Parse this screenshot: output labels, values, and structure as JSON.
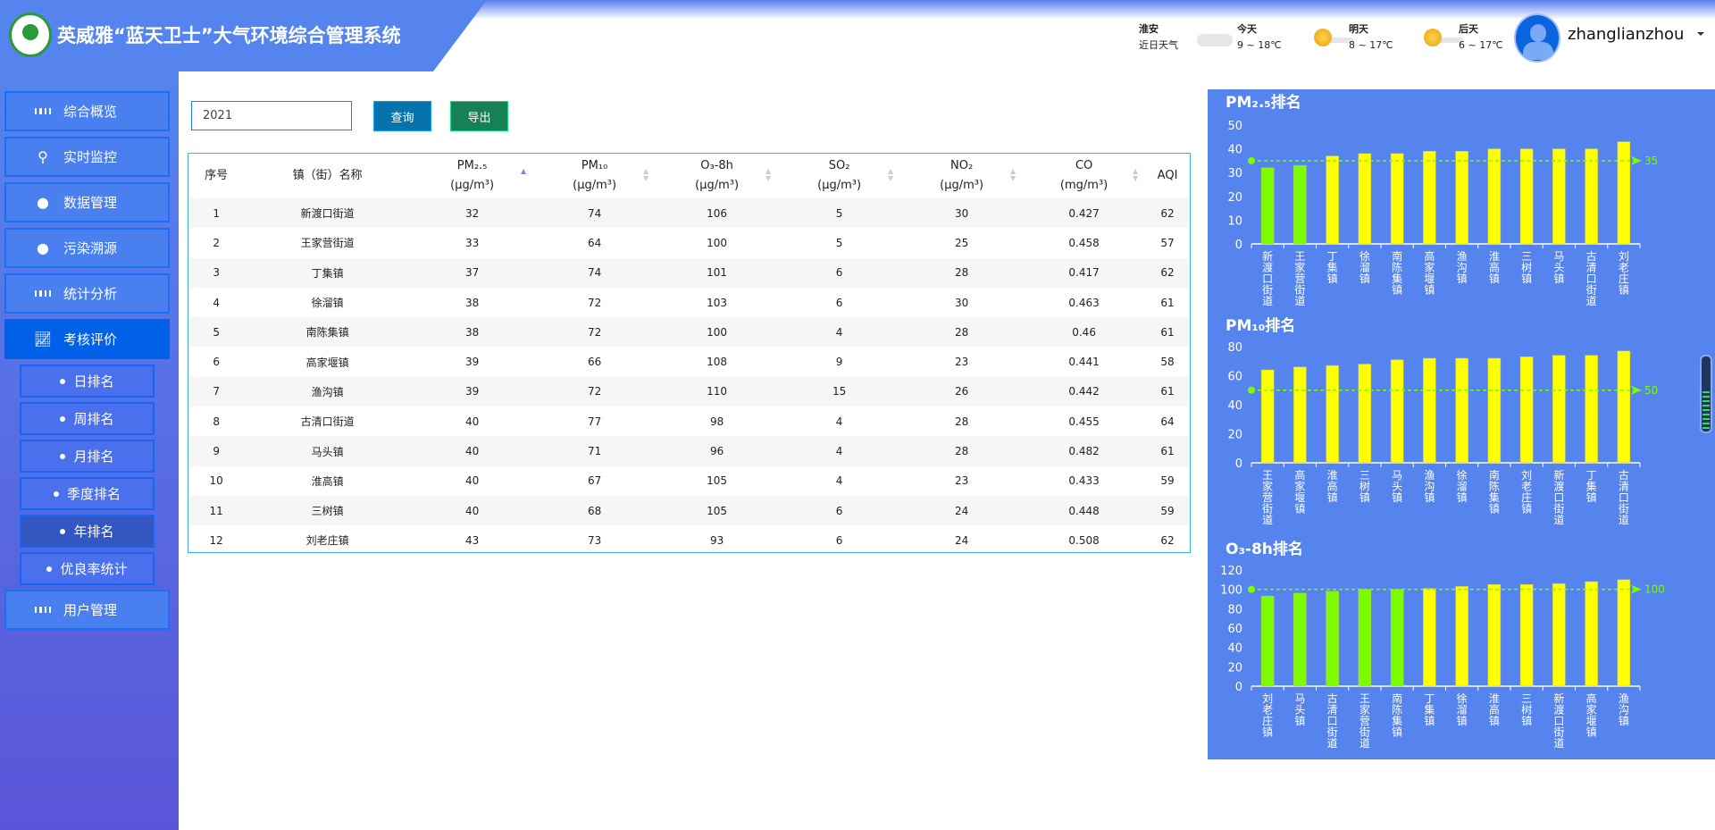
{
  "header": {
    "title": "英威雅“蓝天卫士”大气环境综合管理系统",
    "city": "淮安",
    "weather_label": "近日天气",
    "forecast": [
      {
        "day": "今天",
        "range": "9 ~ 18℃",
        "icon": "cloud-icon"
      },
      {
        "day": "明天",
        "range": "8 ~ 17℃",
        "icon": "sun-cloud-icon"
      },
      {
        "day": "后天",
        "range": "6 ~ 17℃",
        "icon": "sun-cloud-icon"
      }
    ],
    "username": "zhanglianzhou"
  },
  "sidebar": {
    "items": [
      {
        "label": "综合概览",
        "icon": "grid-icon"
      },
      {
        "label": "实时监控",
        "icon": "location-pin-icon"
      },
      {
        "label": "数据管理",
        "icon": "globe-icon"
      },
      {
        "label": "污染溯源",
        "icon": "globe-icon"
      },
      {
        "label": "统计分析",
        "icon": "grid-icon"
      },
      {
        "label": "考核评价",
        "icon": "line-chart-icon",
        "active": true
      },
      {
        "label": "用户管理",
        "icon": "grid-icon"
      }
    ],
    "sub_items": [
      {
        "label": "日排名"
      },
      {
        "label": "周排名"
      },
      {
        "label": "月排名"
      },
      {
        "label": "季度排名"
      },
      {
        "label": "年排名",
        "active": true
      },
      {
        "label": "优良率统计"
      }
    ]
  },
  "toolbar": {
    "year": "2021",
    "query_label": "查询",
    "export_label": "导出"
  },
  "table": {
    "columns": [
      {
        "name": "序号"
      },
      {
        "name": "镇（街）名称"
      },
      {
        "name": "PM₂.₅",
        "unit": "(μg/m³)"
      },
      {
        "name": "PM₁₀",
        "unit": "(μg/m³)"
      },
      {
        "name": "O₃-8h",
        "unit": "(μg/m³)"
      },
      {
        "name": "SO₂",
        "unit": "(μg/m³)"
      },
      {
        "name": "NO₂",
        "unit": "(μg/m³)"
      },
      {
        "name": "CO",
        "unit": "(mg/m³)"
      },
      {
        "name": "AQI"
      }
    ],
    "rows": [
      [
        "1",
        "新渡口街道",
        "32",
        "74",
        "106",
        "5",
        "30",
        "0.427",
        "62"
      ],
      [
        "2",
        "王家营街道",
        "33",
        "64",
        "100",
        "5",
        "25",
        "0.458",
        "57"
      ],
      [
        "3",
        "丁集镇",
        "37",
        "74",
        "101",
        "6",
        "28",
        "0.417",
        "62"
      ],
      [
        "4",
        "徐溜镇",
        "38",
        "72",
        "103",
        "6",
        "30",
        "0.463",
        "61"
      ],
      [
        "5",
        "南陈集镇",
        "38",
        "72",
        "100",
        "4",
        "28",
        "0.46",
        "61"
      ],
      [
        "6",
        "高家堰镇",
        "39",
        "66",
        "108",
        "9",
        "23",
        "0.441",
        "58"
      ],
      [
        "7",
        "渔沟镇",
        "39",
        "72",
        "110",
        "15",
        "26",
        "0.442",
        "61"
      ],
      [
        "8",
        "古清口街道",
        "40",
        "77",
        "98",
        "4",
        "28",
        "0.455",
        "64"
      ],
      [
        "9",
        "马头镇",
        "40",
        "71",
        "96",
        "4",
        "28",
        "0.482",
        "61"
      ],
      [
        "10",
        "淮高镇",
        "40",
        "67",
        "105",
        "4",
        "23",
        "0.433",
        "59"
      ],
      [
        "11",
        "三树镇",
        "40",
        "68",
        "105",
        "6",
        "24",
        "0.448",
        "59"
      ],
      [
        "12",
        "刘老庄镇",
        "43",
        "73",
        "93",
        "6",
        "24",
        "0.508",
        "62"
      ]
    ]
  },
  "colors": {
    "below_limit": "#7cfc00",
    "above_limit": "#ffff00",
    "panel": "#5584ee"
  },
  "chart_data": [
    {
      "type": "bar",
      "title": "PM₂.₅排名",
      "ylim": [
        0,
        50
      ],
      "yticks": [
        0,
        10,
        20,
        30,
        40,
        50
      ],
      "limit": 35,
      "categories": [
        "新渡口街道",
        "王家营街道",
        "丁集镇",
        "徐溜镇",
        "南陈集镇",
        "高家堰镇",
        "渔沟镇",
        "淮高镇",
        "三树镇",
        "马头镇",
        "古清口街道",
        "刘老庄镇"
      ],
      "values": [
        32,
        33,
        37,
        38,
        38,
        39,
        39,
        40,
        40,
        40,
        40,
        43
      ]
    },
    {
      "type": "bar",
      "title": "PM₁₀排名",
      "ylim": [
        0,
        80
      ],
      "yticks": [
        0,
        20,
        40,
        60,
        80
      ],
      "limit": 50,
      "categories": [
        "王家营街道",
        "高家堰镇",
        "淮高镇",
        "三树镇",
        "马头镇",
        "渔沟镇",
        "徐溜镇",
        "南陈集镇",
        "刘老庄镇",
        "新渡口街道",
        "丁集镇",
        "古清口街道"
      ],
      "values": [
        64,
        66,
        67,
        68,
        71,
        72,
        72,
        72,
        73,
        74,
        74,
        77
      ]
    },
    {
      "type": "bar",
      "title": "O₃-8h排名",
      "ylim": [
        0,
        120
      ],
      "yticks": [
        0,
        20,
        40,
        60,
        80,
        100,
        120
      ],
      "limit": 100,
      "categories": [
        "刘老庄镇",
        "马头镇",
        "古清口街道",
        "王家营街道",
        "南陈集镇",
        "丁集镇",
        "徐溜镇",
        "淮高镇",
        "三树镇",
        "新渡口街道",
        "高家堰镇",
        "渔沟镇"
      ],
      "values": [
        93,
        96,
        98,
        100,
        100,
        101,
        103,
        105,
        105,
        106,
        108,
        110
      ]
    }
  ]
}
